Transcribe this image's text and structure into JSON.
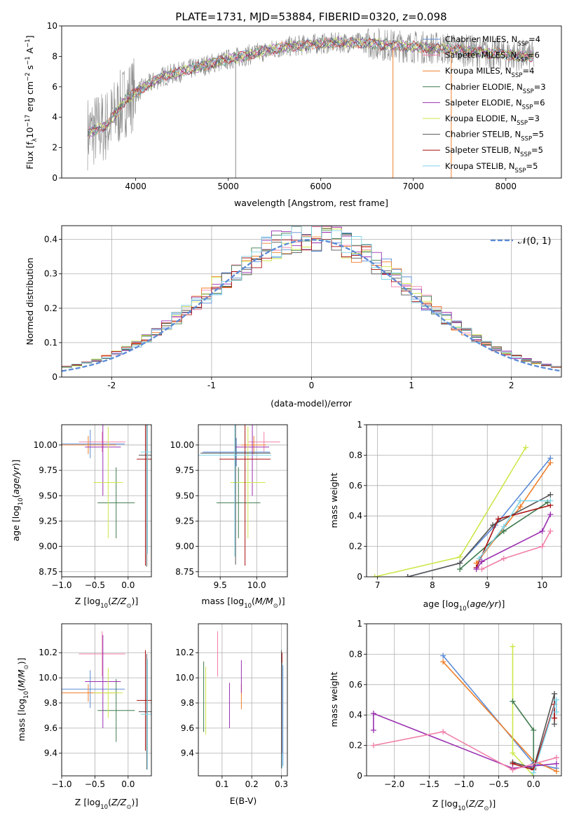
{
  "page_title": "PLATE=1731, MJD=53884, FIBERID=0320, z=0.098",
  "colors": {
    "chabrier_miles": "#5b8bd6",
    "salpeter_miles": "#f07fa8",
    "kroupa_miles": "#f07f2a",
    "chabrier_elodie": "#3f7a4f",
    "salpeter_elodie": "#9a2fb0",
    "kroupa_elodie": "#cbe84a",
    "chabrier_stelib": "#555555",
    "salpeter_stelib": "#aa1111",
    "kroupa_stelib": "#7fd4e8",
    "data": "#888888",
    "normal": "#5b8bd6"
  },
  "chart_data": [
    {
      "type": "line",
      "title": "PLATE=1731, MJD=53884, FIBERID=0320, z=0.098",
      "xlabel": "wavelength [Angstrom, rest frame]",
      "ylabel": "Flux [f$_\\lambda$10$^{-17}$ erg cm$^{-2}$ s$^{-1}$ A$^{-1}$]",
      "xlim": [
        3200,
        8600
      ],
      "ylim": [
        0,
        10
      ],
      "xticks": [
        4000,
        5000,
        6000,
        7000,
        8000
      ],
      "yticks": [
        0,
        2,
        4,
        6,
        8,
        10
      ],
      "legend_position": "right",
      "legend": [
        "Chabrier MILES, N_SSP=4",
        "Salpeter MILES, N_SSP=6",
        "Kroupa MILES, N_SSP=4",
        "Chabrier ELODIE, N_SSP=3",
        "Salpeter ELODIE, N_SSP=6",
        "Kroupa ELODIE, N_SSP=3",
        "Chabrier STELIB, N_SSP=5",
        "Salpeter STELIB, N_SSP=5",
        "Kroupa STELIB, N_SSP=5"
      ],
      "continuum": {
        "x": [
          3500,
          3700,
          3900,
          4100,
          4300,
          4500,
          4800,
          5000,
          5300,
          5600,
          5900,
          6200,
          6500,
          6800,
          7100,
          7400,
          7700,
          8000,
          8300
        ],
        "y": [
          3.0,
          3.5,
          5.2,
          6.0,
          6.7,
          7.0,
          7.5,
          7.8,
          8.2,
          8.6,
          8.8,
          8.9,
          8.9,
          8.7,
          8.6,
          8.5,
          8.3,
          8.1,
          8.0
        ]
      }
    },
    {
      "type": "histogram",
      "xlabel": "(data-model)/error",
      "ylabel": "Normed distribution",
      "xlim": [
        -2.5,
        2.5
      ],
      "ylim": [
        0,
        0.44
      ],
      "xticks": [
        -2,
        -1,
        0,
        1,
        2
      ],
      "yticks": [
        0.0,
        0.1,
        0.2,
        0.3,
        0.4
      ],
      "grid": true,
      "legend": [
        "𝒩(0, 1)"
      ],
      "legend_position": "top-right",
      "bin_width": 0.1
    },
    {
      "type": "scatter",
      "xlabel": "Z [log10(Z/Z☉)]",
      "ylabel": "age [log10(age/yr)]",
      "xlim": [
        -1.0,
        0.35
      ],
      "ylim": [
        8.7,
        10.2
      ],
      "xticks": [
        -1.0,
        -0.5,
        0.0
      ],
      "xticklabels": [
        "−1.0",
        "−0.5",
        "0.0"
      ],
      "yticks": [
        8.75,
        9.0,
        9.25,
        9.5,
        9.75,
        10.0
      ],
      "yticklabels": [
        "8.75",
        "9.00",
        "9.25",
        "9.50",
        "9.75",
        "10.00"
      ],
      "grid": true,
      "points": [
        {
          "m": "chabrier_miles",
          "x": -0.57,
          "xerr": 0.52,
          "y": 10.01,
          "yerr": 0.14
        },
        {
          "m": "salpeter_miles",
          "x": -0.39,
          "xerr": 0.35,
          "y": 10.03,
          "yerr": 0.1
        },
        {
          "m": "kroupa_miles",
          "x": -0.6,
          "xerr": 0.42,
          "y": 10.0,
          "yerr": 0.09
        },
        {
          "m": "chabrier_elodie",
          "x": -0.18,
          "xerr": 0.28,
          "y": 9.43,
          "yerr": 0.35
        },
        {
          "m": "salpeter_elodie",
          "x": -0.38,
          "xerr": 0.27,
          "y": 9.98,
          "yerr": 0.48
        },
        {
          "m": "kroupa_elodie",
          "x": -0.3,
          "xerr": 0.22,
          "y": 9.63,
          "yerr": 0.55
        },
        {
          "m": "chabrier_stelib",
          "x": 0.28,
          "xerr": 0.12,
          "y": 9.9,
          "yerr": 1.1
        },
        {
          "m": "salpeter_stelib",
          "x": 0.26,
          "xerr": 0.13,
          "y": 9.86,
          "yerr": 1.05
        },
        {
          "m": "kroupa_stelib",
          "x": 0.29,
          "xerr": 0.1,
          "y": 9.93,
          "yerr": 1.0
        }
      ]
    },
    {
      "type": "scatter",
      "xlabel": "mass [log10(M/M☉)]",
      "xlim": [
        9.2,
        10.42
      ],
      "ylim": [
        8.7,
        10.2
      ],
      "xticks": [
        9.5,
        10.0
      ],
      "xticklabels": [
        "9.5",
        "10.0"
      ],
      "yticks": [
        8.75,
        9.0,
        9.25,
        9.5,
        9.75,
        10.0
      ],
      "yticklabels": [
        "8.75",
        "9.00",
        "9.25",
        "9.50",
        "9.75",
        "10.00"
      ],
      "grid": true,
      "points": [
        {
          "m": "chabrier_miles",
          "x": 9.72,
          "xerr": 0.46,
          "y": 9.93,
          "yerr": 0.14
        },
        {
          "m": "salpeter_miles",
          "x": 10.1,
          "xerr": 0.22,
          "y": 10.03,
          "yerr": 0.1
        },
        {
          "m": "kroupa_miles",
          "x": 9.96,
          "xerr": 0.17,
          "y": 10.0,
          "yerr": 0.09
        },
        {
          "m": "chabrier_elodie",
          "x": 9.75,
          "xerr": 0.3,
          "y": 9.43,
          "yerr": 0.35
        },
        {
          "m": "salpeter_elodie",
          "x": 9.94,
          "xerr": 0.23,
          "y": 9.98,
          "yerr": 0.48
        },
        {
          "m": "kroupa_elodie",
          "x": 9.88,
          "xerr": 0.24,
          "y": 9.63,
          "yerr": 0.55
        },
        {
          "m": "chabrier_stelib",
          "x": 9.71,
          "xerr": 0.48,
          "y": 9.92,
          "yerr": 1.1
        },
        {
          "m": "salpeter_stelib",
          "x": 9.84,
          "xerr": 0.35,
          "y": 9.86,
          "yerr": 1.05
        },
        {
          "m": "kroupa_stelib",
          "x": 9.7,
          "xerr": 0.5,
          "y": 9.9,
          "yerr": 1.0
        }
      ]
    },
    {
      "type": "line",
      "xlabel": "age [log10(age/yr)]",
      "ylabel": "mass weight",
      "xlim": [
        6.8,
        10.35
      ],
      "ylim": [
        0,
        1.0
      ],
      "xticks": [
        7,
        8,
        9,
        10
      ],
      "yticks": [
        0.0,
        0.2,
        0.4,
        0.6,
        0.8,
        1.0
      ],
      "grid": true,
      "series": [
        {
          "m": "kroupa_elodie",
          "x": [
            6.95,
            8.5,
            9.7
          ],
          "y": [
            0.0,
            0.13,
            0.85
          ]
        },
        {
          "m": "chabrier_miles",
          "x": [
            7.55,
            8.5,
            9.15,
            10.15
          ],
          "y": [
            0.0,
            0.09,
            0.34,
            0.78
          ]
        },
        {
          "m": "kroupa_miles",
          "x": [
            8.8,
            9.6,
            10.15
          ],
          "y": [
            0.09,
            0.46,
            0.75
          ]
        },
        {
          "m": "chabrier_elodie",
          "x": [
            8.5,
            9.3,
            10.1
          ],
          "y": [
            0.05,
            0.3,
            0.49
          ]
        },
        {
          "m": "chabrier_stelib",
          "x": [
            7.55,
            8.5,
            9.1,
            10.15
          ],
          "y": [
            0.0,
            0.09,
            0.34,
            0.54
          ]
        },
        {
          "m": "salpeter_stelib",
          "x": [
            8.8,
            9.2,
            10.15
          ],
          "y": [
            0.06,
            0.38,
            0.47
          ]
        },
        {
          "m": "kroupa_stelib",
          "x": [
            8.85,
            9.3,
            9.6,
            10.15
          ],
          "y": [
            0.12,
            0.33,
            0.5,
            0.5
          ]
        },
        {
          "m": "salpeter_elodie",
          "x": [
            8.8,
            8.9,
            10.0,
            10.15
          ],
          "y": [
            0.05,
            0.1,
            0.3,
            0.41
          ]
        },
        {
          "m": "salpeter_miles",
          "x": [
            8.9,
            9.3,
            10.0,
            10.15
          ],
          "y": [
            0.05,
            0.12,
            0.2,
            0.3
          ]
        }
      ]
    },
    {
      "type": "scatter",
      "xlabel": "Z [log10(Z/Z☉)]",
      "ylabel": "mass [log10(M/M☉)]",
      "xlim": [
        -1.0,
        0.35
      ],
      "ylim": [
        9.22,
        10.43
      ],
      "xticks": [
        -1.0,
        -0.5,
        0.0
      ],
      "xticklabels": [
        "−1.0",
        "−0.5",
        "0.0"
      ],
      "yticks": [
        9.4,
        9.6,
        9.8,
        10.0,
        10.2
      ],
      "yticklabels": [
        "9.4",
        "9.6",
        "9.8",
        "10.0",
        "10.2"
      ],
      "grid": true,
      "points": [
        {
          "m": "chabrier_miles",
          "x": -0.57,
          "xerr": 0.52,
          "y": 9.91,
          "yerr": 0.15
        },
        {
          "m": "salpeter_miles",
          "x": -0.39,
          "xerr": 0.35,
          "y": 10.19,
          "yerr": 0.18
        },
        {
          "m": "kroupa_miles",
          "x": -0.6,
          "xerr": 0.42,
          "y": 9.88,
          "yerr": 0.07
        },
        {
          "m": "chabrier_elodie",
          "x": -0.18,
          "xerr": 0.28,
          "y": 9.74,
          "yerr": 0.25
        },
        {
          "m": "salpeter_elodie",
          "x": -0.38,
          "xerr": 0.27,
          "y": 9.97,
          "yerr": 0.37
        },
        {
          "m": "kroupa_elodie",
          "x": -0.3,
          "xerr": 0.22,
          "y": 9.88,
          "yerr": 0.2
        },
        {
          "m": "chabrier_stelib",
          "x": 0.28,
          "xerr": 0.12,
          "y": 9.73,
          "yerr": 0.46
        },
        {
          "m": "salpeter_stelib",
          "x": 0.26,
          "xerr": 0.13,
          "y": 9.82,
          "yerr": 0.4
        },
        {
          "m": "kroupa_stelib",
          "x": 0.29,
          "xerr": 0.1,
          "y": 9.71,
          "yerr": 0.44
        }
      ]
    },
    {
      "type": "scatter",
      "xlabel": "E(B-V)",
      "xlim": [
        0.02,
        0.32
      ],
      "ylim": [
        9.22,
        10.43
      ],
      "xticks": [
        0.1,
        0.2,
        0.3
      ],
      "xticklabels": [
        "0.1",
        "0.2",
        "0.3"
      ],
      "yticks": [
        9.4,
        9.6,
        9.8,
        10.0,
        10.2
      ],
      "yticklabels": [
        "9.4",
        "9.6",
        "9.8",
        "10.0",
        "10.2"
      ],
      "grid": true,
      "points": [
        {
          "m": "chabrier_miles",
          "x": 0.305,
          "y": 9.7,
          "yerr": 0.4
        },
        {
          "m": "salpeter_miles",
          "x": 0.085,
          "y": 10.19,
          "yerr": 0.18
        },
        {
          "m": "kroupa_miles",
          "x": 0.165,
          "y": 9.85,
          "yerr": 0.1
        },
        {
          "m": "chabrier_elodie",
          "x": 0.038,
          "y": 9.85,
          "yerr": 0.28
        },
        {
          "m": "salpeter_elodie",
          "x": 0.165,
          "y": 10.01,
          "yerr": 0.13
        },
        {
          "m": "kroupa_elodie",
          "x": 0.045,
          "y": 9.82,
          "yerr": 0.27
        },
        {
          "m": "chabrier_stelib",
          "x": 0.3,
          "y": 9.75,
          "yerr": 0.47
        },
        {
          "m": "salpeter_stelib",
          "x": 0.302,
          "y": 9.8,
          "yerr": 0.4
        },
        {
          "m": "kroupa_stelib",
          "x": 0.303,
          "y": 9.7,
          "yerr": 0.42
        },
        {
          "m": "salpeter_elodie",
          "x": 0.125,
          "y": 9.78,
          "yerr": 0.18
        }
      ]
    },
    {
      "type": "line",
      "xlabel": "Z [log10(Z/Z☉)]",
      "ylabel": "mass weight",
      "xlim": [
        -2.4,
        0.4
      ],
      "ylim": [
        0,
        1.0
      ],
      "xticks": [
        -2.0,
        -1.5,
        -1.0,
        -0.5,
        0.0
      ],
      "xticklabels": [
        "−2.0",
        "−1.5",
        "−1.0",
        "−0.5",
        "0.0"
      ],
      "yticks": [
        0.0,
        0.2,
        0.4,
        0.6,
        0.8,
        1.0
      ],
      "grid": true,
      "series": [
        {
          "m": "chabrier_miles",
          "x": [
            -1.3,
            0.0,
            0.33
          ],
          "y": [
            0.79,
            0.08,
            0.05
          ]
        },
        {
          "m": "kroupa_miles",
          "x": [
            -1.3,
            0.0,
            0.33
          ],
          "y": [
            0.75,
            0.1,
            0.03
          ]
        },
        {
          "m": "kroupa_elodie",
          "x": [
            -0.3,
            -0.3,
            0.0
          ],
          "y": [
            0.85,
            0.15,
            0.0
          ]
        },
        {
          "m": "chabrier_elodie",
          "x": [
            -0.3,
            0.0,
            0.0
          ],
          "y": [
            0.49,
            0.3,
            0.05
          ]
        },
        {
          "m": "chabrier_stelib",
          "x": [
            -0.3,
            0.0,
            0.3,
            0.3
          ],
          "y": [
            0.09,
            0.05,
            0.54,
            0.34
          ]
        },
        {
          "m": "salpeter_stelib",
          "x": [
            -0.3,
            0.0,
            0.3,
            0.3
          ],
          "y": [
            0.08,
            0.04,
            0.47,
            0.38
          ]
        },
        {
          "m": "kroupa_stelib",
          "x": [
            0.0,
            0.33,
            0.33
          ],
          "y": [
            0.02,
            0.5,
            0.42
          ]
        },
        {
          "m": "salpeter_elodie",
          "x": [
            -2.3,
            -2.3,
            -0.3,
            0.33
          ],
          "y": [
            0.3,
            0.41,
            0.05,
            0.08
          ]
        },
        {
          "m": "salpeter_miles",
          "x": [
            -2.3,
            -1.3,
            -0.3,
            0.33
          ],
          "y": [
            0.2,
            0.29,
            0.04,
            0.12
          ]
        }
      ]
    }
  ]
}
